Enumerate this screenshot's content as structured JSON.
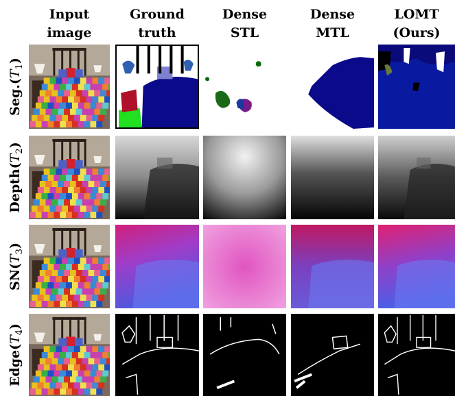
{
  "columns": [
    {
      "lines": [
        "Input",
        "image"
      ]
    },
    {
      "lines": [
        "Ground",
        "truth"
      ]
    },
    {
      "lines": [
        "Dense",
        "STL"
      ]
    },
    {
      "lines": [
        "Dense",
        "MTL"
      ]
    },
    {
      "lines": [
        "LOMT",
        "(Ours)"
      ]
    }
  ],
  "rows": [
    {
      "label": "Seg.",
      "symbol": "T",
      "index": "1"
    },
    {
      "label": "Depth",
      "symbol": "T",
      "index": "2"
    },
    {
      "label": "SN",
      "symbol": "T",
      "index": "3"
    },
    {
      "label": "Edge",
      "symbol": "T",
      "index": "4"
    }
  ]
}
